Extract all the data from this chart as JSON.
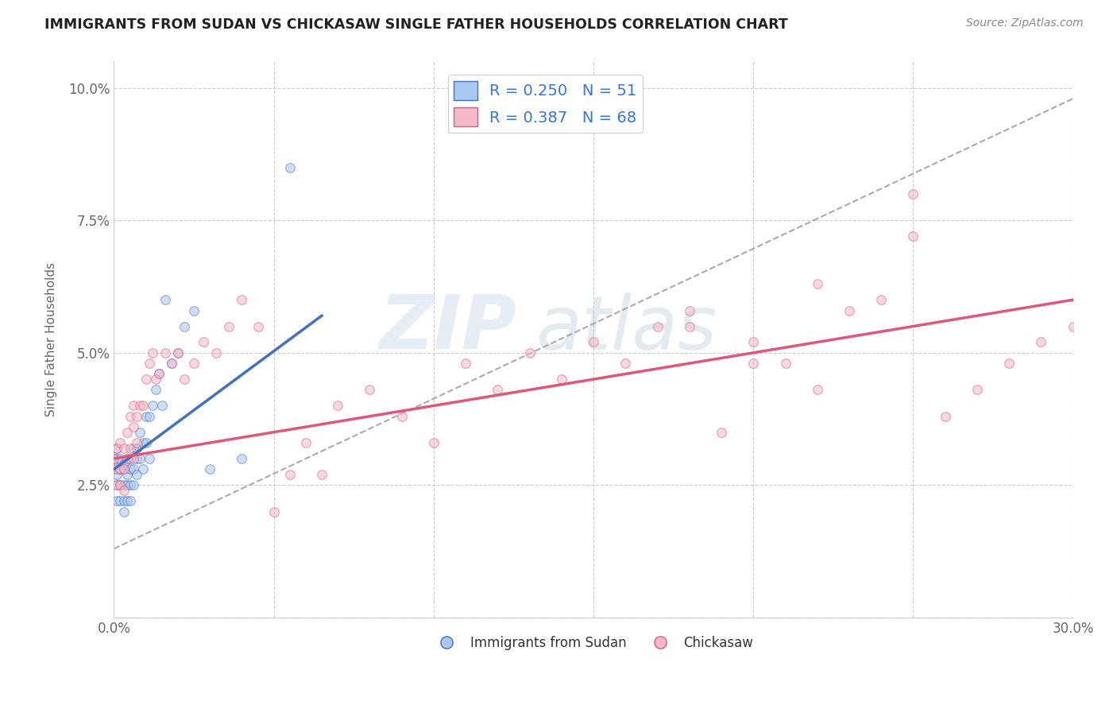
{
  "title": "IMMIGRANTS FROM SUDAN VS CHICKASAW SINGLE FATHER HOUSEHOLDS CORRELATION CHART",
  "source": "Source: ZipAtlas.com",
  "ylabel": "Single Father Households",
  "xlim": [
    0.0,
    0.3
  ],
  "ylim": [
    0.0,
    0.105
  ],
  "xticks": [
    0.0,
    0.05,
    0.1,
    0.15,
    0.2,
    0.25,
    0.3
  ],
  "xticklabels": [
    "0.0%",
    "",
    "",
    "",
    "",
    "",
    "30.0%"
  ],
  "yticks": [
    0.0,
    0.025,
    0.05,
    0.075,
    0.1
  ],
  "yticklabels": [
    "",
    "2.5%",
    "5.0%",
    "7.5%",
    "10.0%"
  ],
  "legend1_label": "R = 0.250   N = 51",
  "legend2_label": "R = 0.387   N = 68",
  "legend_series1": "Immigrants from Sudan",
  "legend_series2": "Chickasaw",
  "color_blue": "#A8C8F0",
  "color_pink": "#F5B8C8",
  "color_blue_line": "#4470C4",
  "color_pink_line": "#E05878",
  "color_dashed_line": "#AAAAAA",
  "blue_trend_x": [
    0.0,
    0.065
  ],
  "blue_trend_y": [
    0.028,
    0.057
  ],
  "pink_trend_x": [
    0.0,
    0.3
  ],
  "pink_trend_y": [
    0.03,
    0.06
  ],
  "dashed_line_x": [
    0.0,
    0.3
  ],
  "dashed_line_y": [
    0.013,
    0.098
  ],
  "blue_points_x": [
    0.0,
    0.0,
    0.001,
    0.001,
    0.001,
    0.001,
    0.001,
    0.002,
    0.002,
    0.002,
    0.002,
    0.002,
    0.003,
    0.003,
    0.003,
    0.003,
    0.003,
    0.004,
    0.004,
    0.004,
    0.004,
    0.005,
    0.005,
    0.005,
    0.005,
    0.006,
    0.006,
    0.006,
    0.007,
    0.007,
    0.007,
    0.008,
    0.008,
    0.009,
    0.009,
    0.01,
    0.01,
    0.011,
    0.011,
    0.012,
    0.013,
    0.014,
    0.015,
    0.016,
    0.018,
    0.02,
    0.022,
    0.025,
    0.03,
    0.04,
    0.055
  ],
  "blue_points_y": [
    0.028,
    0.03,
    0.027,
    0.03,
    0.032,
    0.025,
    0.022,
    0.028,
    0.03,
    0.025,
    0.022,
    0.028,
    0.029,
    0.028,
    0.025,
    0.022,
    0.02,
    0.03,
    0.027,
    0.025,
    0.022,
    0.03,
    0.028,
    0.025,
    0.022,
    0.032,
    0.028,
    0.025,
    0.032,
    0.03,
    0.027,
    0.035,
    0.03,
    0.033,
    0.028,
    0.038,
    0.033,
    0.038,
    0.03,
    0.04,
    0.043,
    0.046,
    0.04,
    0.06,
    0.048,
    0.05,
    0.055,
    0.058,
    0.028,
    0.03,
    0.085
  ],
  "pink_points_x": [
    0.0,
    0.001,
    0.001,
    0.001,
    0.002,
    0.002,
    0.002,
    0.003,
    0.003,
    0.003,
    0.004,
    0.004,
    0.005,
    0.005,
    0.006,
    0.006,
    0.006,
    0.007,
    0.007,
    0.008,
    0.009,
    0.01,
    0.011,
    0.012,
    0.013,
    0.014,
    0.016,
    0.018,
    0.02,
    0.022,
    0.025,
    0.028,
    0.032,
    0.036,
    0.04,
    0.045,
    0.05,
    0.055,
    0.06,
    0.065,
    0.07,
    0.08,
    0.09,
    0.1,
    0.11,
    0.12,
    0.13,
    0.14,
    0.15,
    0.16,
    0.17,
    0.18,
    0.19,
    0.2,
    0.21,
    0.22,
    0.23,
    0.24,
    0.25,
    0.26,
    0.27,
    0.28,
    0.29,
    0.3,
    0.25,
    0.22,
    0.2,
    0.18
  ],
  "pink_points_y": [
    0.03,
    0.032,
    0.028,
    0.025,
    0.033,
    0.028,
    0.025,
    0.032,
    0.028,
    0.024,
    0.035,
    0.03,
    0.038,
    0.032,
    0.04,
    0.036,
    0.03,
    0.038,
    0.033,
    0.04,
    0.04,
    0.045,
    0.048,
    0.05,
    0.045,
    0.046,
    0.05,
    0.048,
    0.05,
    0.045,
    0.048,
    0.052,
    0.05,
    0.055,
    0.06,
    0.055,
    0.02,
    0.027,
    0.033,
    0.027,
    0.04,
    0.043,
    0.038,
    0.033,
    0.048,
    0.043,
    0.05,
    0.045,
    0.052,
    0.048,
    0.055,
    0.058,
    0.035,
    0.052,
    0.048,
    0.063,
    0.058,
    0.06,
    0.072,
    0.038,
    0.043,
    0.048,
    0.052,
    0.055,
    0.08,
    0.043,
    0.048,
    0.055
  ]
}
